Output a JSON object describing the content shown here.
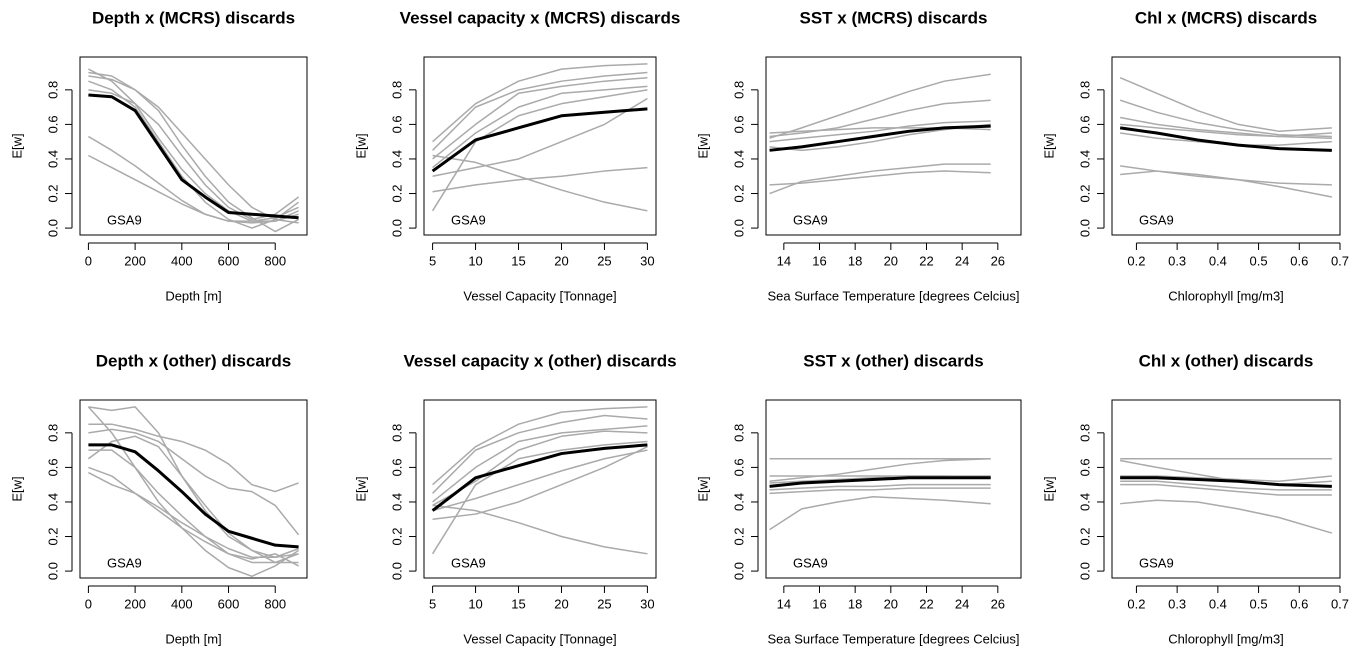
{
  "chart_data": [
    {
      "type": "line",
      "title": "Depth x (MCRS) discards",
      "xlabel": "Depth [m]",
      "ylabel": "E[w]",
      "annotation": "GSA9",
      "x": [
        0,
        100,
        200,
        300,
        400,
        500,
        600,
        700,
        800,
        900
      ],
      "xlim": [
        -36,
        936
      ],
      "xticks": [
        0,
        200,
        400,
        600,
        800
      ],
      "ylim": [
        -0.04,
        0.99
      ],
      "yticks": [
        {
          "value": 0,
          "label": "0.0"
        },
        0.2,
        0.4,
        0.6,
        0.8
      ],
      "series": [
        {
          "color": "#aaaaaa",
          "values": [
            0.92,
            0.85,
            0.72,
            0.52,
            0.34,
            0.2,
            0.1,
            0.04,
            0.04,
            0.1
          ]
        },
        {
          "color": "#aaaaaa",
          "values": [
            0.88,
            0.86,
            0.8,
            0.7,
            0.55,
            0.4,
            0.25,
            0.12,
            0.05,
            0.03
          ]
        },
        {
          "color": "#aaaaaa",
          "values": [
            0.85,
            0.8,
            0.7,
            0.5,
            0.3,
            0.15,
            0.05,
            0.0,
            0.05,
            0.15
          ]
        },
        {
          "color": "#aaaaaa",
          "values": [
            0.53,
            0.45,
            0.36,
            0.26,
            0.16,
            0.08,
            0.04,
            0.04,
            0.06,
            0.12
          ]
        },
        {
          "color": "#aaaaaa",
          "values": [
            0.42,
            0.35,
            0.28,
            0.21,
            0.14,
            0.08,
            0.04,
            0.03,
            0.04,
            0.08
          ]
        },
        {
          "color": "#aaaaaa",
          "values": [
            0.8,
            0.78,
            0.72,
            0.6,
            0.42,
            0.25,
            0.12,
            0.05,
            0.08,
            0.18
          ]
        },
        {
          "color": "#aaaaaa",
          "values": [
            0.9,
            0.88,
            0.8,
            0.68,
            0.48,
            0.3,
            0.15,
            0.06,
            -0.02,
            0.05
          ]
        },
        {
          "color": "#000000",
          "values": [
            0.77,
            0.76,
            0.68,
            0.48,
            0.28,
            0.18,
            0.09,
            0.08,
            0.07,
            0.06
          ]
        }
      ]
    },
    {
      "type": "line",
      "title": "Vessel capacity x (MCRS) discards",
      "xlabel": "Vessel Capacity [Tonnage]",
      "ylabel": "E[w]",
      "annotation": "GSA9",
      "x": [
        5,
        10,
        15,
        20,
        25,
        30
      ],
      "xlim": [
        4,
        31
      ],
      "xticks": [
        5,
        10,
        15,
        20,
        25,
        30
      ],
      "ylim": [
        -0.04,
        0.99
      ],
      "yticks": [
        {
          "value": 0,
          "label": "0.0"
        },
        0.2,
        0.4,
        0.6,
        0.8
      ],
      "series": [
        {
          "color": "#aaaaaa",
          "values": [
            0.5,
            0.72,
            0.85,
            0.92,
            0.94,
            0.95
          ]
        },
        {
          "color": "#aaaaaa",
          "values": [
            0.45,
            0.7,
            0.8,
            0.85,
            0.88,
            0.9
          ]
        },
        {
          "color": "#aaaaaa",
          "values": [
            0.4,
            0.6,
            0.78,
            0.82,
            0.85,
            0.87
          ]
        },
        {
          "color": "#aaaaaa",
          "values": [
            0.35,
            0.55,
            0.7,
            0.78,
            0.8,
            0.82
          ]
        },
        {
          "color": "#aaaaaa",
          "values": [
            0.1,
            0.5,
            0.65,
            0.72,
            0.76,
            0.8
          ]
        },
        {
          "color": "#aaaaaa",
          "values": [
            0.42,
            0.38,
            0.3,
            0.22,
            0.15,
            0.1
          ]
        },
        {
          "color": "#aaaaaa",
          "values": [
            0.21,
            0.25,
            0.28,
            0.3,
            0.33,
            0.35
          ]
        },
        {
          "color": "#aaaaaa",
          "values": [
            0.3,
            0.35,
            0.4,
            0.5,
            0.6,
            0.75
          ]
        },
        {
          "color": "#000000",
          "values": [
            0.33,
            0.51,
            0.58,
            0.65,
            0.67,
            0.69
          ]
        }
      ]
    },
    {
      "type": "line",
      "title": "SST x (MCRS) discards",
      "xlabel": "Sea Surface Temperature [degrees Celcius]",
      "ylabel": "E[w]",
      "annotation": "GSA9",
      "x": [
        13.2,
        15,
        17,
        19,
        21,
        23,
        25.6
      ],
      "xlim": [
        13.0,
        27.3
      ],
      "xticks": [
        14,
        16,
        18,
        20,
        22,
        24,
        26
      ],
      "ylim": [
        -0.04,
        0.99
      ],
      "yticks": [
        {
          "value": 0,
          "label": "0.0"
        },
        0.2,
        0.4,
        0.6,
        0.8
      ],
      "series": [
        {
          "color": "#aaaaaa",
          "values": [
            0.52,
            0.58,
            0.65,
            0.72,
            0.79,
            0.85,
            0.89
          ]
        },
        {
          "color": "#aaaaaa",
          "values": [
            0.53,
            0.55,
            0.58,
            0.63,
            0.68,
            0.72,
            0.74
          ]
        },
        {
          "color": "#aaaaaa",
          "values": [
            0.5,
            0.52,
            0.54,
            0.56,
            0.59,
            0.61,
            0.62
          ]
        },
        {
          "color": "#aaaaaa",
          "values": [
            0.55,
            0.56,
            0.57,
            0.58,
            0.58,
            0.58,
            0.57
          ]
        },
        {
          "color": "#aaaaaa",
          "values": [
            0.47,
            0.45,
            0.47,
            0.5,
            0.54,
            0.57,
            0.6
          ]
        },
        {
          "color": "#aaaaaa",
          "values": [
            0.25,
            0.26,
            0.28,
            0.3,
            0.32,
            0.33,
            0.32
          ]
        },
        {
          "color": "#aaaaaa",
          "values": [
            0.2,
            0.27,
            0.3,
            0.33,
            0.35,
            0.37,
            0.37
          ]
        },
        {
          "color": "#000000",
          "values": [
            0.45,
            0.47,
            0.5,
            0.53,
            0.56,
            0.58,
            0.59
          ]
        }
      ]
    },
    {
      "type": "line",
      "title": "Chl x (MCRS) discards",
      "xlabel": "Chlorophyll [mg/m3]",
      "ylabel": "E[w]",
      "annotation": "GSA9",
      "x": [
        0.16,
        0.25,
        0.35,
        0.45,
        0.55,
        0.68
      ],
      "xlim": [
        0.14,
        0.7
      ],
      "xticks": [
        0.2,
        0.3,
        0.4,
        0.5,
        0.6,
        0.7
      ],
      "ylim": [
        -0.04,
        0.99
      ],
      "yticks": [
        {
          "value": 0,
          "label": "0.0"
        },
        0.2,
        0.4,
        0.6,
        0.8
      ],
      "series": [
        {
          "color": "#aaaaaa",
          "values": [
            0.87,
            0.78,
            0.68,
            0.6,
            0.56,
            0.58
          ]
        },
        {
          "color": "#aaaaaa",
          "values": [
            0.74,
            0.67,
            0.61,
            0.57,
            0.54,
            0.53
          ]
        },
        {
          "color": "#aaaaaa",
          "values": [
            0.64,
            0.6,
            0.57,
            0.55,
            0.53,
            0.52
          ]
        },
        {
          "color": "#aaaaaa",
          "values": [
            0.6,
            0.58,
            0.56,
            0.54,
            0.53,
            0.55
          ]
        },
        {
          "color": "#aaaaaa",
          "values": [
            0.55,
            0.52,
            0.5,
            0.48,
            0.48,
            0.5
          ]
        },
        {
          "color": "#aaaaaa",
          "values": [
            0.36,
            0.33,
            0.3,
            0.28,
            0.26,
            0.25
          ]
        },
        {
          "color": "#aaaaaa",
          "values": [
            0.31,
            0.33,
            0.31,
            0.28,
            0.24,
            0.18
          ]
        },
        {
          "color": "#000000",
          "values": [
            0.58,
            0.55,
            0.51,
            0.48,
            0.46,
            0.45
          ]
        }
      ]
    },
    {
      "type": "line",
      "title": "Depth x (other) discards",
      "xlabel": "Depth [m]",
      "ylabel": "E[w]",
      "annotation": "GSA9",
      "x": [
        0,
        100,
        200,
        300,
        400,
        500,
        600,
        700,
        800,
        900
      ],
      "xlim": [
        -36,
        936
      ],
      "xticks": [
        0,
        200,
        400,
        600,
        800
      ],
      "ylim": [
        -0.04,
        0.99
      ],
      "yticks": [
        {
          "value": 0,
          "label": "0.0"
        },
        0.2,
        0.4,
        0.6,
        0.8
      ],
      "series": [
        {
          "color": "#aaaaaa",
          "values": [
            0.95,
            0.93,
            0.95,
            0.8,
            0.55,
            0.35,
            0.2,
            0.12,
            0.08,
            0.1
          ]
        },
        {
          "color": "#aaaaaa",
          "values": [
            0.85,
            0.85,
            0.82,
            0.78,
            0.75,
            0.7,
            0.62,
            0.5,
            0.46,
            0.51
          ]
        },
        {
          "color": "#aaaaaa",
          "values": [
            0.8,
            0.82,
            0.8,
            0.75,
            0.65,
            0.55,
            0.48,
            0.46,
            0.38,
            0.21
          ]
        },
        {
          "color": "#aaaaaa",
          "values": [
            0.65,
            0.75,
            0.78,
            0.72,
            0.55,
            0.38,
            0.22,
            0.12,
            0.05,
            0.05
          ]
        },
        {
          "color": "#aaaaaa",
          "values": [
            0.6,
            0.55,
            0.45,
            0.35,
            0.25,
            0.17,
            0.1,
            0.05,
            0.05,
            0.1
          ]
        },
        {
          "color": "#aaaaaa",
          "values": [
            0.57,
            0.5,
            0.45,
            0.37,
            0.28,
            0.2,
            0.13,
            0.08,
            0.08,
            0.13
          ]
        },
        {
          "color": "#aaaaaa",
          "values": [
            0.95,
            0.8,
            0.6,
            0.4,
            0.25,
            0.12,
            0.02,
            -0.03,
            0.03,
            0.12
          ]
        },
        {
          "color": "#aaaaaa",
          "values": [
            0.7,
            0.7,
            0.6,
            0.45,
            0.32,
            0.2,
            0.1,
            0.07,
            0.1,
            0.03
          ]
        },
        {
          "color": "#000000",
          "values": [
            0.73,
            0.73,
            0.69,
            0.58,
            0.46,
            0.33,
            0.23,
            0.19,
            0.15,
            0.14
          ]
        }
      ]
    },
    {
      "type": "line",
      "title": "Vessel capacity x (other) discards",
      "xlabel": "Vessel Capacity [Tonnage]",
      "ylabel": "E[w]",
      "annotation": "GSA9",
      "x": [
        5,
        10,
        15,
        20,
        25,
        30
      ],
      "xlim": [
        4,
        31
      ],
      "xticks": [
        5,
        10,
        15,
        20,
        25,
        30
      ],
      "ylim": [
        -0.04,
        0.99
      ],
      "yticks": [
        {
          "value": 0,
          "label": "0.0"
        },
        0.2,
        0.4,
        0.6,
        0.8
      ],
      "series": [
        {
          "color": "#aaaaaa",
          "values": [
            0.5,
            0.72,
            0.85,
            0.92,
            0.94,
            0.95
          ]
        },
        {
          "color": "#aaaaaa",
          "values": [
            0.45,
            0.7,
            0.8,
            0.86,
            0.9,
            0.88
          ]
        },
        {
          "color": "#aaaaaa",
          "values": [
            0.4,
            0.6,
            0.75,
            0.8,
            0.82,
            0.84
          ]
        },
        {
          "color": "#aaaaaa",
          "values": [
            0.38,
            0.52,
            0.7,
            0.78,
            0.81,
            0.8
          ]
        },
        {
          "color": "#aaaaaa",
          "values": [
            0.1,
            0.5,
            0.65,
            0.7,
            0.73,
            0.75
          ]
        },
        {
          "color": "#aaaaaa",
          "values": [
            0.38,
            0.35,
            0.28,
            0.2,
            0.14,
            0.1
          ]
        },
        {
          "color": "#aaaaaa",
          "values": [
            0.3,
            0.33,
            0.4,
            0.5,
            0.6,
            0.72
          ]
        },
        {
          "color": "#aaaaaa",
          "values": [
            0.35,
            0.42,
            0.5,
            0.58,
            0.65,
            0.7
          ]
        },
        {
          "color": "#000000",
          "values": [
            0.35,
            0.54,
            0.61,
            0.68,
            0.71,
            0.73
          ]
        }
      ]
    },
    {
      "type": "line",
      "title": "SST x (other) discards",
      "xlabel": "Sea Surface Temperature [degrees Celcius]",
      "ylabel": "E[w]",
      "annotation": "GSA9",
      "x": [
        13.2,
        15,
        17,
        19,
        21,
        23,
        25.6
      ],
      "xlim": [
        13.0,
        27.3
      ],
      "xticks": [
        14,
        16,
        18,
        20,
        22,
        24,
        26
      ],
      "ylim": [
        -0.04,
        0.99
      ],
      "yticks": [
        {
          "value": 0,
          "label": "0.0"
        },
        0.2,
        0.4,
        0.6,
        0.8
      ],
      "series": [
        {
          "color": "#aaaaaa",
          "values": [
            0.65,
            0.65,
            0.65,
            0.65,
            0.65,
            0.65,
            0.65
          ]
        },
        {
          "color": "#aaaaaa",
          "values": [
            0.52,
            0.54,
            0.56,
            0.59,
            0.62,
            0.64,
            0.65
          ]
        },
        {
          "color": "#aaaaaa",
          "values": [
            0.55,
            0.55,
            0.55,
            0.55,
            0.55,
            0.55,
            0.55
          ]
        },
        {
          "color": "#aaaaaa",
          "values": [
            0.51,
            0.52,
            0.53,
            0.54,
            0.55,
            0.55,
            0.54
          ]
        },
        {
          "color": "#aaaaaa",
          "values": [
            0.47,
            0.48,
            0.49,
            0.49,
            0.5,
            0.5,
            0.5
          ]
        },
        {
          "color": "#aaaaaa",
          "values": [
            0.45,
            0.46,
            0.47,
            0.47,
            0.48,
            0.48,
            0.48
          ]
        },
        {
          "color": "#aaaaaa",
          "values": [
            0.24,
            0.36,
            0.4,
            0.43,
            0.42,
            0.41,
            0.39
          ]
        },
        {
          "color": "#000000",
          "values": [
            0.49,
            0.51,
            0.52,
            0.53,
            0.54,
            0.54,
            0.54
          ]
        }
      ]
    },
    {
      "type": "line",
      "title": "Chl x (other) discards",
      "xlabel": "Chlorophyll [mg/m3]",
      "ylabel": "E[w]",
      "annotation": "GSA9",
      "x": [
        0.16,
        0.25,
        0.35,
        0.45,
        0.55,
        0.68
      ],
      "xlim": [
        0.14,
        0.7
      ],
      "xticks": [
        0.2,
        0.3,
        0.4,
        0.5,
        0.6,
        0.7
      ],
      "ylim": [
        -0.04,
        0.99
      ],
      "yticks": [
        {
          "value": 0,
          "label": "0.0"
        },
        0.2,
        0.4,
        0.6,
        0.8
      ],
      "series": [
        {
          "color": "#aaaaaa",
          "values": [
            0.65,
            0.65,
            0.65,
            0.65,
            0.65,
            0.65
          ]
        },
        {
          "color": "#aaaaaa",
          "values": [
            0.64,
            0.6,
            0.56,
            0.52,
            0.5,
            0.52
          ]
        },
        {
          "color": "#aaaaaa",
          "values": [
            0.55,
            0.55,
            0.54,
            0.53,
            0.52,
            0.55
          ]
        },
        {
          "color": "#aaaaaa",
          "values": [
            0.52,
            0.52,
            0.5,
            0.48,
            0.47,
            0.47
          ]
        },
        {
          "color": "#aaaaaa",
          "values": [
            0.5,
            0.5,
            0.48,
            0.46,
            0.44,
            0.44
          ]
        },
        {
          "color": "#aaaaaa",
          "values": [
            0.39,
            0.41,
            0.4,
            0.36,
            0.31,
            0.22
          ]
        },
        {
          "color": "#000000",
          "values": [
            0.54,
            0.54,
            0.53,
            0.52,
            0.5,
            0.49
          ]
        }
      ]
    }
  ]
}
